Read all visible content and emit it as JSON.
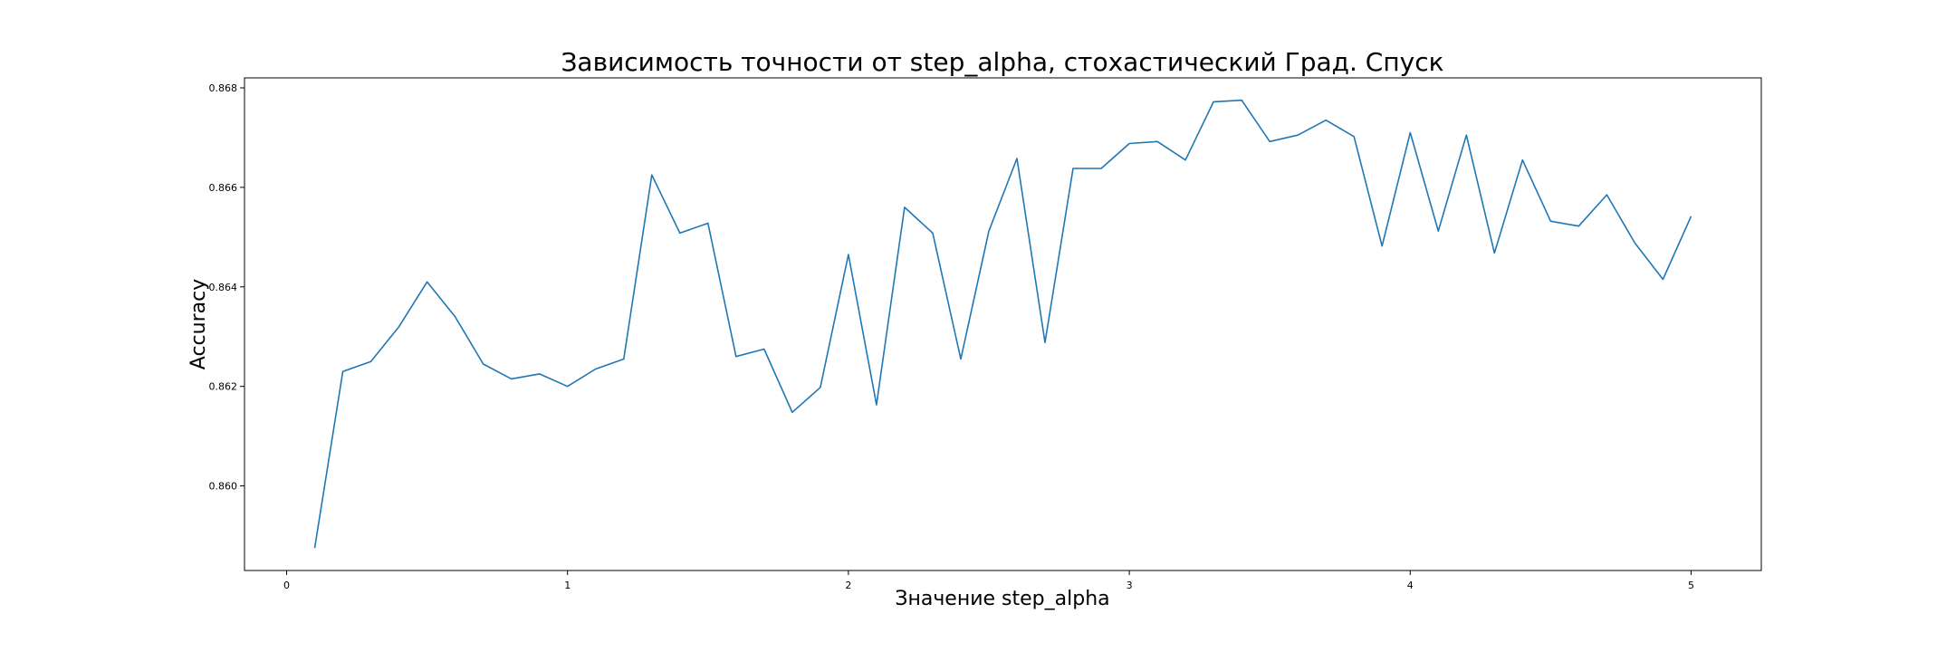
{
  "chart_data": {
    "type": "line",
    "title": "Зависимость точности от step_alpha, стохастический Град. Спуск",
    "xlabel": "Значение step_alpha",
    "ylabel": "Accuracy",
    "xlim": [
      -0.15,
      5.25
    ],
    "ylim": [
      0.8583,
      0.8682
    ],
    "xticks": [
      0,
      1,
      2,
      3,
      4,
      5
    ],
    "xtick_labels": [
      "0",
      "1",
      "2",
      "3",
      "4",
      "5"
    ],
    "yticks": [
      0.86,
      0.862,
      0.864,
      0.866,
      0.868
    ],
    "ytick_labels": [
      "0.860",
      "0.862",
      "0.864",
      "0.866",
      "0.868"
    ],
    "grid": false,
    "legend": "none",
    "series": [
      {
        "color": "#1f77b4",
        "x": [
          0.1,
          0.2,
          0.3,
          0.4,
          0.5,
          0.6,
          0.7,
          0.8,
          0.9,
          1.0,
          1.1,
          1.2,
          1.3,
          1.4,
          1.5,
          1.6,
          1.7,
          1.8,
          1.9,
          2.0,
          2.1,
          2.2,
          2.3,
          2.4,
          2.5,
          2.6,
          2.7,
          2.8,
          2.9,
          3.0,
          3.1,
          3.2,
          3.3,
          3.4,
          3.5,
          3.6,
          3.7,
          3.8,
          3.9,
          4.0,
          4.1,
          4.2,
          4.3,
          4.4,
          4.5,
          4.6,
          4.7,
          4.8,
          4.9,
          5.0
        ],
        "y": [
          0.85875,
          0.8623,
          0.8625,
          0.8632,
          0.8641,
          0.8634,
          0.86245,
          0.86215,
          0.86225,
          0.862,
          0.86235,
          0.86255,
          0.86625,
          0.86508,
          0.86528,
          0.8626,
          0.86275,
          0.86148,
          0.86198,
          0.86465,
          0.86163,
          0.8656,
          0.86508,
          0.86255,
          0.86512,
          0.86658,
          0.86288,
          0.86638,
          0.86638,
          0.86688,
          0.86692,
          0.86655,
          0.86772,
          0.86775,
          0.86692,
          0.86705,
          0.86735,
          0.86702,
          0.86482,
          0.8671,
          0.86512,
          0.86705,
          0.86468,
          0.86655,
          0.86532,
          0.86522,
          0.86585,
          0.86488,
          0.86415,
          0.86542
        ]
      }
    ]
  }
}
